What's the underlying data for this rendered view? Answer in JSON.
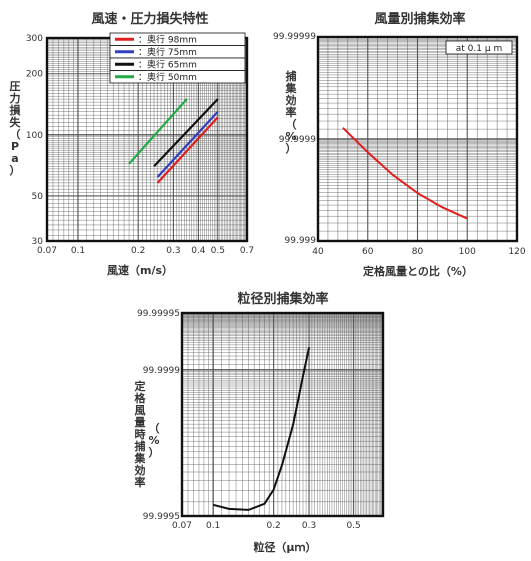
{
  "chart_data": [
    {
      "type": "line",
      "title": "風速・圧力損失特性",
      "xlabel": "風速（m/s）",
      "ylabel": "圧力損失（Pa）",
      "x_scale": "log",
      "y_scale": "log",
      "xlim": [
        0.07,
        0.7
      ],
      "ylim": [
        30,
        300
      ],
      "x_ticks": [
        "0.07",
        "0.1",
        "0.2",
        "0.3",
        "0.4",
        "0.5",
        "0.7"
      ],
      "x_tick_values": [
        0.07,
        0.1,
        0.2,
        0.3,
        0.4,
        0.5,
        0.7
      ],
      "y_ticks": [
        "30",
        "50",
        "100",
        "200",
        "300"
      ],
      "y_tick_values": [
        30,
        50,
        100,
        200,
        300
      ],
      "legend_position": "top-right",
      "series": [
        {
          "name": "：奥行 98mm",
          "color": "#e02020",
          "x": [
            0.25,
            0.5
          ],
          "y": [
            58,
            122
          ]
        },
        {
          "name": "：奥行 75mm",
          "color": "#3040c0",
          "x": [
            0.25,
            0.5
          ],
          "y": [
            62,
            130
          ]
        },
        {
          "name": "：奥行 65mm",
          "color": "#111111",
          "x": [
            0.24,
            0.5
          ],
          "y": [
            70,
            150
          ]
        },
        {
          "name": "：奥行 50mm",
          "color": "#22aa44",
          "x": [
            0.18,
            0.35
          ],
          "y": [
            72,
            150
          ]
        }
      ]
    },
    {
      "type": "line",
      "title": "風量別捕集効率",
      "xlabel": "定格風量との比（%）",
      "ylabel": "捕集効率（%）",
      "xlim": [
        40,
        120
      ],
      "ylim_labels": [
        "99.999",
        "99.9999",
        "99.99999"
      ],
      "x_ticks": [
        "40",
        "60",
        "80",
        "100",
        "120"
      ],
      "x_tick_values": [
        40,
        60,
        80,
        100,
        120
      ],
      "y_ticks": [
        "99.99999",
        "99.9999",
        "99.999"
      ],
      "annotation": "at 0.1 μ m",
      "legend_position": "none",
      "series": [
        {
          "color": "#e02020",
          "x": [
            50,
            60,
            70,
            80,
            90,
            100
          ],
          "y_fraction_of_height": [
            0.555,
            0.435,
            0.325,
            0.235,
            0.165,
            0.11
          ]
        }
      ]
    },
    {
      "type": "line",
      "title": "粒径別捕集効率",
      "xlabel": "粒径（μｍ）",
      "ylabel": "定格風量時捕集効率（%）",
      "x_scale": "log",
      "xlim": [
        0.07,
        0.7
      ],
      "x_ticks": [
        "0.07",
        "0.1",
        "0.2",
        "0.3",
        "0.5"
      ],
      "x_tick_values": [
        0.07,
        0.1,
        0.2,
        0.3,
        0.5
      ],
      "y_ticks": [
        "99.99995",
        "99.9999",
        "99.9995"
      ],
      "legend_position": "none",
      "series": [
        {
          "color": "#111111",
          "x": [
            0.1,
            0.12,
            0.15,
            0.18,
            0.2,
            0.22,
            0.25,
            0.28,
            0.3
          ],
          "y_fraction_of_height": [
            0.055,
            0.035,
            0.03,
            0.06,
            0.13,
            0.25,
            0.45,
            0.69,
            0.83
          ]
        }
      ]
    }
  ]
}
